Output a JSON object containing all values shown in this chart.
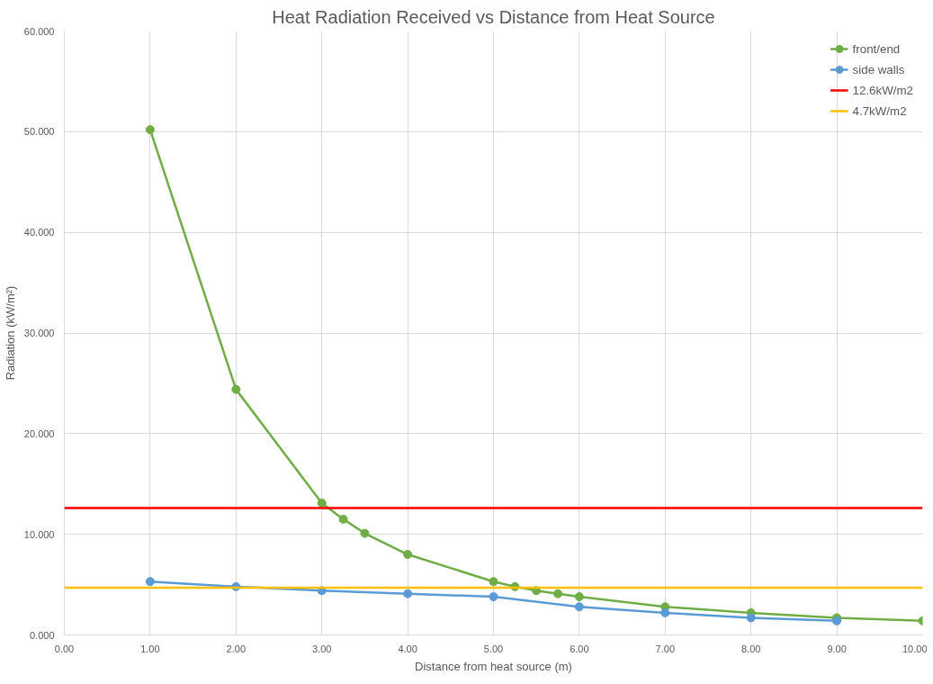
{
  "chart_data": {
    "type": "line",
    "title": "Heat Radiation Received vs Distance from Heat Source",
    "xlabel": "Distance from heat source (m)",
    "ylabel": "Radiation (kW/m²)",
    "series": [
      {
        "name": "front/end",
        "color": "#70ad47",
        "x": [
          1,
          2,
          3,
          3.25,
          3.5,
          4,
          5,
          5.25,
          5.5,
          5.75,
          6,
          7,
          8,
          9,
          10
        ],
        "values": [
          50.2,
          24.4,
          13.1,
          11.5,
          10.1,
          8.0,
          5.3,
          4.8,
          4.4,
          4.1,
          3.8,
          2.8,
          2.2,
          1.7,
          1.4
        ]
      },
      {
        "name": "side walls",
        "color": "#5b9bd5",
        "x": [
          1,
          2,
          3,
          4,
          5,
          6,
          7,
          8,
          9
        ],
        "values": [
          5.3,
          4.8,
          4.4,
          4.1,
          3.8,
          2.8,
          2.2,
          1.7,
          1.4
        ]
      }
    ],
    "ref_lines": [
      {
        "axis": "y",
        "value": 12.6,
        "label": "12.6kW/m2",
        "color": "#ff0000"
      },
      {
        "axis": "y",
        "value": 4.7,
        "label": "4.7kW/m2",
        "color": "#ffc000"
      }
    ],
    "xlim": [
      0,
      10
    ],
    "ylim": [
      0,
      60
    ],
    "xticks": [
      {
        "value": 0,
        "label": "0.00"
      },
      {
        "value": 1,
        "label": "1.00"
      },
      {
        "value": 2,
        "label": "2.00"
      },
      {
        "value": 3,
        "label": "3.00"
      },
      {
        "value": 4,
        "label": "4.00"
      },
      {
        "value": 5,
        "label": "5.00"
      },
      {
        "value": 6,
        "label": "6.00"
      },
      {
        "value": 7,
        "label": "7.00"
      },
      {
        "value": 8,
        "label": "8.00"
      },
      {
        "value": 9,
        "label": "9.00"
      },
      {
        "value": 10,
        "label": "10.00"
      }
    ],
    "yticks": [
      {
        "value": 0,
        "label": "0.000"
      },
      {
        "value": 10,
        "label": "10.000"
      },
      {
        "value": 20,
        "label": "20.000"
      },
      {
        "value": 30,
        "label": "30.000"
      },
      {
        "value": 40,
        "label": "40.000"
      },
      {
        "value": 50,
        "label": "50.000"
      },
      {
        "value": 60,
        "label": "60.000"
      }
    ],
    "grid": true,
    "legend": "top right",
    "marker": "circle",
    "line_style": "solid"
  }
}
